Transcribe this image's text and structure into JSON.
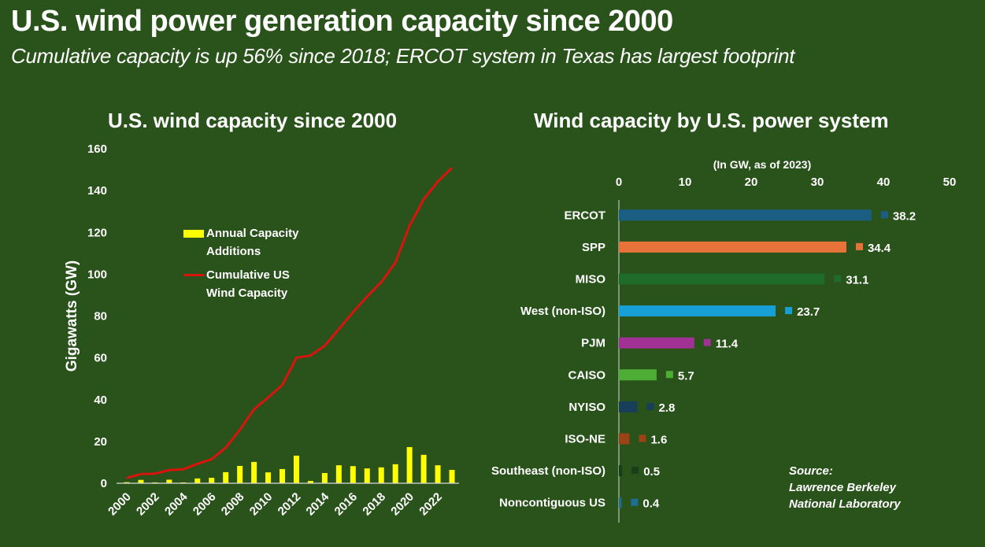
{
  "header": {
    "title": "U.S. wind power generation capacity since 2000",
    "subtitle": "Cumulative capacity is up 56% since 2018; ERCOT system in Texas has largest footprint"
  },
  "source": {
    "label": "Source:",
    "line1": "Lawrence Berkeley",
    "line2": "National Laboratory"
  },
  "colors": {
    "background": "#2a521b",
    "annual_bar": "#ffff00",
    "cumulative_line": "#d9140e"
  },
  "chart_data": [
    {
      "type": "bar+line",
      "title": "U.S. wind capacity since 2000",
      "xlabel": "",
      "ylabel": "Gigawatts (GW)",
      "ylim": [
        0,
        160
      ],
      "yticks": [
        0,
        20,
        40,
        60,
        80,
        100,
        120,
        140,
        160
      ],
      "xtick_labels": [
        "2000",
        "2002",
        "2004",
        "2006",
        "2008",
        "2010",
        "2012",
        "2014",
        "2016",
        "2018",
        "2020",
        "2022"
      ],
      "grid": false,
      "legend_position": "upper-left-center",
      "categories": [
        2000,
        2001,
        2002,
        2003,
        2004,
        2005,
        2006,
        2007,
        2008,
        2009,
        2010,
        2011,
        2012,
        2013,
        2014,
        2015,
        2016,
        2017,
        2018,
        2019,
        2020,
        2021,
        2022,
        2023
      ],
      "series": [
        {
          "name": "Annual Capacity Additions",
          "type": "bar",
          "color": "#ffff00",
          "values": [
            0.5,
            1.6,
            0.4,
            1.7,
            0.4,
            2.3,
            2.6,
            5.3,
            8.3,
            10.2,
            5.2,
            6.8,
            13.2,
            1.1,
            4.9,
            8.6,
            8.2,
            7.1,
            7.6,
            9.1,
            17.3,
            13.6,
            8.6,
            6.4
          ]
        },
        {
          "name": "Cumulative US Wind Capacity",
          "type": "line",
          "color": "#d9140e",
          "values": [
            2.5,
            4.4,
            4.6,
            6.3,
            6.7,
            9.3,
            11.5,
            17.0,
            25.6,
            35.4,
            41.0,
            47.0,
            60.0,
            61.1,
            65.8,
            73.7,
            81.8,
            89.3,
            96.2,
            105.6,
            123.2,
            135.8,
            144.3,
            150.9
          ]
        }
      ],
      "legend": [
        {
          "label_line1": "Annual Capacity",
          "label_line2": "Additions"
        },
        {
          "label_line1": "Cumulative US",
          "label_line2": "Wind Capacity"
        }
      ]
    },
    {
      "type": "bar",
      "orientation": "horizontal",
      "title": "Wind capacity by U.S. power system",
      "xlabel": "(In GW, as of 2023)",
      "xlim": [
        0,
        50
      ],
      "xticks": [
        0,
        10,
        20,
        30,
        40,
        50
      ],
      "x_axis_position": "top",
      "grid": false,
      "categories": [
        "ERCOT",
        "SPP",
        "MISO",
        "West (non-ISO)",
        "PJM",
        "CAISO",
        "NYISO",
        "ISO-NE",
        "Southeast (non-ISO)",
        "Noncontiguous US"
      ],
      "values": [
        38.2,
        34.4,
        31.1,
        23.7,
        11.4,
        5.7,
        2.8,
        1.6,
        0.5,
        0.4
      ],
      "value_labels": [
        "38.2",
        "34.4",
        "31.1",
        "23.7",
        "11.4",
        "5.7",
        "2.8",
        "1.6",
        "0.5",
        "0.4"
      ],
      "colors": [
        "#1b5e84",
        "#e8733a",
        "#1e6b2a",
        "#17a0d6",
        "#a23195",
        "#4ead35",
        "#173f5a",
        "#9b4317",
        "#183f1a",
        "#1f6e93"
      ]
    }
  ]
}
